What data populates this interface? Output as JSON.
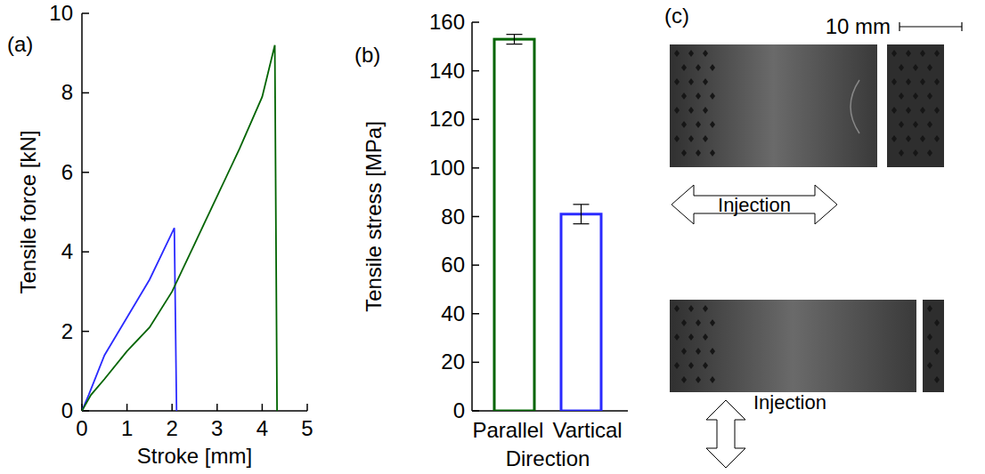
{
  "chart_data": [
    {
      "type": "line",
      "panel": "(a)",
      "x_label": "Stroke [mm]",
      "y_label": "Tensile force [kN]",
      "xlim": [
        0,
        5
      ],
      "xticks": [
        0,
        1,
        2,
        3,
        4,
        5
      ],
      "ylim": [
        0,
        10
      ],
      "yticks": [
        0,
        2,
        4,
        6,
        8,
        10
      ],
      "grid": false,
      "series": [
        {
          "color": "#2a2aff",
          "x": [
            0,
            0.15,
            0.5,
            1,
            1.5,
            2.05,
            2.1
          ],
          "values": [
            0,
            0.4,
            1.4,
            2.35,
            3.3,
            4.6,
            0
          ]
        },
        {
          "color": "#006400",
          "x": [
            0,
            0.2,
            0.5,
            1,
            1.5,
            2,
            2.5,
            3,
            3.5,
            4,
            4.28,
            4.33
          ],
          "values": [
            0,
            0.4,
            0.8,
            1.5,
            2.1,
            3.0,
            4.2,
            5.4,
            6.6,
            7.9,
            9.2,
            0
          ]
        }
      ]
    },
    {
      "type": "bar",
      "panel": "(b)",
      "x_label": "Direction",
      "y_label": "Tensile stress [MPa]",
      "categories": [
        "Parallel",
        "Vartical"
      ],
      "values": [
        153,
        81
      ],
      "errors": [
        2,
        4
      ],
      "colors": [
        "#006400",
        "#2a2aff"
      ],
      "ylim": [
        0,
        160
      ],
      "yticks": [
        0,
        20,
        40,
        60,
        80,
        100,
        120,
        140,
        160
      ],
      "grid": false
    }
  ],
  "photos": {
    "panel": "(c)",
    "scale_bar": "10 mm",
    "specimens": [
      {
        "direction_label": "Injection"
      },
      {
        "direction_label": "Injection"
      }
    ]
  }
}
